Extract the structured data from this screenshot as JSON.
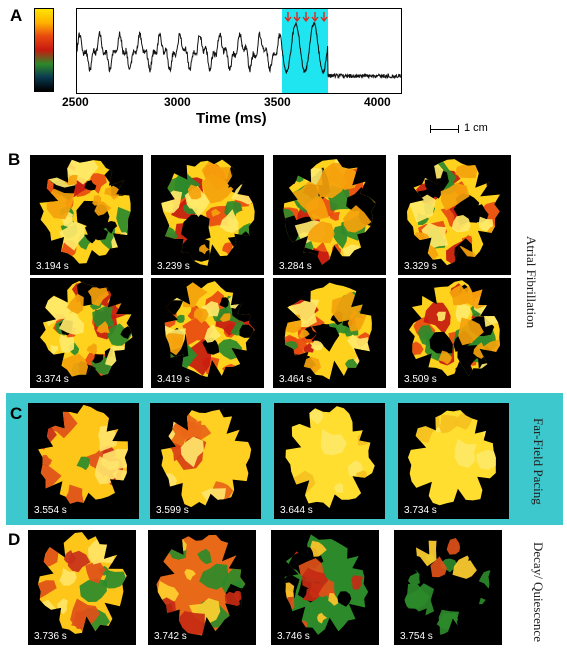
{
  "panel_labels": {
    "a": "A",
    "b": "B",
    "c": "C",
    "d": "D"
  },
  "trace": {
    "xlabel": "Time (ms)",
    "xticks": [
      "2500",
      "3000",
      "3500",
      "4000"
    ],
    "colors": {
      "trace": "#111111",
      "highlight": "#1fe5f0",
      "arrows": "#e0281e"
    }
  },
  "scalebar": {
    "label": "1 cm"
  },
  "colorbar": {
    "colors": [
      "#ffe400",
      "#ffb000",
      "#e84a10",
      "#c61a10",
      "#2d8a2a",
      "#0a3a50",
      "#000000"
    ]
  },
  "rows": {
    "b1": {
      "side_label": "Atrial Fibrillation",
      "frames": [
        {
          "time": "3.194 s",
          "state": "af"
        },
        {
          "time": "3.239 s",
          "state": "af"
        },
        {
          "time": "3.284 s",
          "state": "af"
        },
        {
          "time": "3.329 s",
          "state": "af"
        }
      ]
    },
    "b2": {
      "frames": [
        {
          "time": "3.374 s",
          "state": "af"
        },
        {
          "time": "3.419 s",
          "state": "af"
        },
        {
          "time": "3.464 s",
          "state": "af"
        },
        {
          "time": "3.509 s",
          "state": "af"
        }
      ]
    },
    "c": {
      "side_label": "Far-Field Pacing",
      "frames": [
        {
          "time": "3.554 s",
          "state": "pace1"
        },
        {
          "time": "3.599 s",
          "state": "pace2"
        },
        {
          "time": "3.644 s",
          "state": "pace3"
        },
        {
          "time": "3.734 s",
          "state": "pace3"
        }
      ]
    },
    "d": {
      "side_label": "Decay/ Quiescence",
      "frames": [
        {
          "time": "3.736 s",
          "state": "decay1"
        },
        {
          "time": "3.742 s",
          "state": "decay2"
        },
        {
          "time": "3.746 s",
          "state": "decay3"
        },
        {
          "time": "3.754 s",
          "state": "decay4"
        }
      ]
    }
  }
}
